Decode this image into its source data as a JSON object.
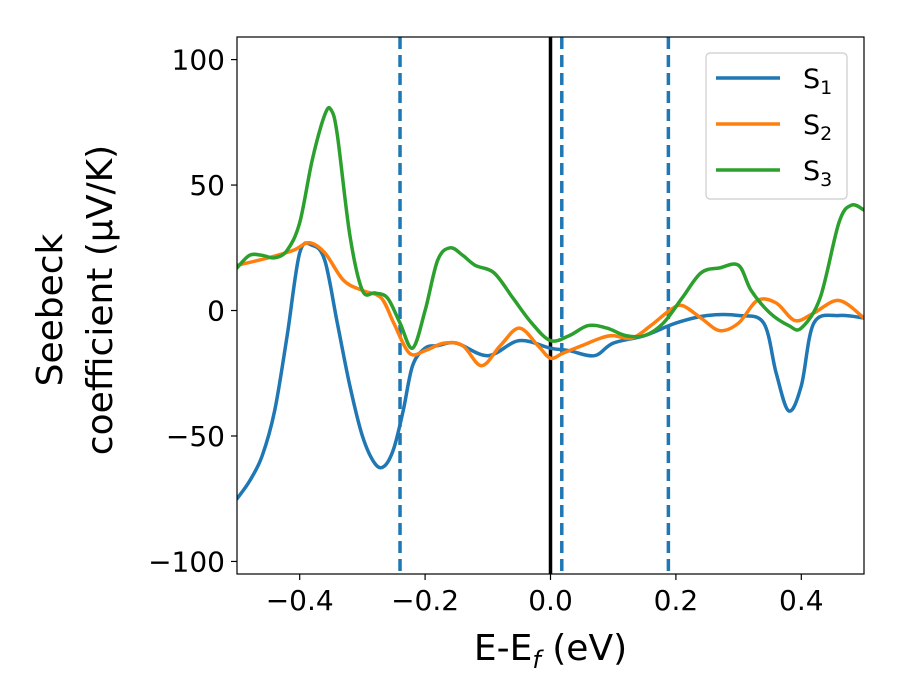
{
  "chart_data": {
    "type": "line",
    "xlabel": "E-E",
    "xlabel_sub": "f",
    "xlabel_unit": " (eV)",
    "ylabel_line1": "Seebeck",
    "ylabel_line2": "coefficient  (μV/K)",
    "xlim": [
      -0.5,
      0.5
    ],
    "ylim": [
      -105,
      109
    ],
    "xticks": [
      -0.4,
      -0.2,
      0.0,
      0.2,
      0.4
    ],
    "xtick_labels": [
      "−0.4",
      "−0.2",
      "0.0",
      "0.2",
      "0.4"
    ],
    "yticks": [
      -100,
      -50,
      0,
      50,
      100
    ],
    "ytick_labels": [
      "−100",
      "−50",
      "0",
      "50",
      "100"
    ],
    "grid": false,
    "legend_position": "top-right",
    "vertical_lines": [
      {
        "x": -0.24,
        "style": "dashed",
        "color": "#1f77b4"
      },
      {
        "x": 0.0,
        "style": "solid",
        "color": "#000000"
      },
      {
        "x": 0.018,
        "style": "dashed",
        "color": "#1f77b4"
      },
      {
        "x": 0.188,
        "style": "dashed",
        "color": "#1f77b4"
      }
    ],
    "series": [
      {
        "name": "S",
        "subscript": "1",
        "color": "#1f77b4",
        "x": [
          -0.5,
          -0.48,
          -0.46,
          -0.44,
          -0.42,
          -0.4,
          -0.38,
          -0.36,
          -0.34,
          -0.32,
          -0.3,
          -0.28,
          -0.265,
          -0.25,
          -0.235,
          -0.22,
          -0.2,
          -0.18,
          -0.15,
          -0.1,
          -0.05,
          0.0,
          0.03,
          0.07,
          0.1,
          0.15,
          0.2,
          0.25,
          0.3,
          0.34,
          0.36,
          0.38,
          0.4,
          0.42,
          0.46,
          0.5
        ],
        "y": [
          -75,
          -68,
          -58,
          -40,
          -10,
          23,
          26,
          20,
          -5,
          -30,
          -50,
          -61,
          -62,
          -55,
          -40,
          -22,
          -15,
          -14,
          -13,
          -18,
          -12,
          -15,
          -16,
          -18,
          -13,
          -10,
          -5,
          -2,
          -2,
          -5,
          -25,
          -40,
          -30,
          -5,
          -2,
          -3
        ]
      },
      {
        "name": "S",
        "subscript": "2",
        "color": "#ff7f0e",
        "x": [
          -0.5,
          -0.45,
          -0.41,
          -0.385,
          -0.36,
          -0.33,
          -0.3,
          -0.27,
          -0.25,
          -0.225,
          -0.2,
          -0.17,
          -0.14,
          -0.11,
          -0.08,
          -0.05,
          -0.02,
          0.0,
          0.02,
          0.05,
          0.08,
          0.1,
          0.13,
          0.16,
          0.19,
          0.21,
          0.24,
          0.27,
          0.3,
          0.33,
          0.36,
          0.39,
          0.42,
          0.46,
          0.5
        ],
        "y": [
          18,
          21,
          24,
          27,
          23,
          12,
          8,
          5,
          -5,
          -17,
          -16,
          -13,
          -14,
          -22,
          -14,
          -7,
          -14,
          -19,
          -17,
          -14,
          -11,
          -10,
          -11,
          -6,
          0,
          2,
          -3,
          -8,
          -5,
          4,
          3,
          -4,
          -1,
          4,
          -3
        ]
      },
      {
        "name": "S",
        "subscript": "3",
        "color": "#2ca02c",
        "x": [
          -0.5,
          -0.48,
          -0.46,
          -0.44,
          -0.42,
          -0.4,
          -0.38,
          -0.36,
          -0.35,
          -0.34,
          -0.32,
          -0.3,
          -0.28,
          -0.26,
          -0.24,
          -0.22,
          -0.2,
          -0.18,
          -0.16,
          -0.14,
          -0.12,
          -0.09,
          -0.06,
          -0.03,
          0.0,
          0.03,
          0.06,
          0.09,
          0.12,
          0.15,
          0.18,
          0.21,
          0.24,
          0.27,
          0.3,
          0.32,
          0.35,
          0.38,
          0.4,
          0.43,
          0.46,
          0.48,
          0.5
        ],
        "y": [
          17,
          22,
          22,
          21,
          24,
          35,
          60,
          78,
          80,
          70,
          30,
          8,
          7,
          5,
          -5,
          -15,
          0,
          20,
          25,
          22,
          18,
          15,
          5,
          -5,
          -12,
          -10,
          -6,
          -7,
          -10,
          -10,
          -5,
          5,
          15,
          17,
          18,
          8,
          -1,
          -6,
          -7,
          5,
          35,
          42,
          40
        ]
      }
    ]
  }
}
